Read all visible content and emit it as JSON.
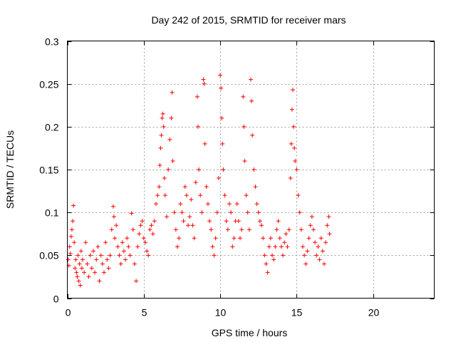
{
  "chart_data": {
    "type": "scatter",
    "title": "Day 242 of 2015, SRMTID for receiver mars",
    "xlabel": "GPS time / hours",
    "ylabel": "SRMTID / TECUs",
    "xlim": [
      0,
      24
    ],
    "ylim": [
      0,
      0.3
    ],
    "xticks": [
      0,
      5,
      10,
      15,
      20
    ],
    "xtick_labels": [
      "0",
      "5",
      "10",
      "15",
      "20"
    ],
    "yticks": [
      0,
      0.05,
      0.1,
      0.15,
      0.2,
      0.25,
      0.3
    ],
    "ytick_labels": [
      "0",
      "0.05",
      "0.1",
      "0.15",
      "0.2",
      "0.25",
      "0.3"
    ],
    "grid": true,
    "marker": "+",
    "color": "#ff0000",
    "series": [
      {
        "name": "SRMTID",
        "points": [
          [
            0.05,
            0.045
          ],
          [
            0.1,
            0.038
          ],
          [
            0.15,
            0.06
          ],
          [
            0.2,
            0.052
          ],
          [
            0.25,
            0.072
          ],
          [
            0.3,
            0.08
          ],
          [
            0.35,
            0.09
          ],
          [
            0.4,
            0.108
          ],
          [
            0.45,
            0.065
          ],
          [
            0.5,
            0.035
          ],
          [
            0.55,
            0.045
          ],
          [
            0.6,
            0.03
          ],
          [
            0.65,
            0.025
          ],
          [
            0.7,
            0.05
          ],
          [
            0.75,
            0.02
          ],
          [
            0.8,
            0.04
          ],
          [
            0.85,
            0.015
          ],
          [
            0.9,
            0.055
          ],
          [
            0.95,
            0.035
          ],
          [
            1.0,
            0.045
          ],
          [
            1.1,
            0.03
          ],
          [
            1.2,
            0.065
          ],
          [
            1.3,
            0.04
          ],
          [
            1.4,
            0.025
          ],
          [
            1.5,
            0.05
          ],
          [
            1.6,
            0.035
          ],
          [
            1.7,
            0.055
          ],
          [
            1.8,
            0.03
          ],
          [
            1.9,
            0.045
          ],
          [
            2.0,
            0.06
          ],
          [
            2.1,
            0.02
          ],
          [
            2.2,
            0.05
          ],
          [
            2.3,
            0.04
          ],
          [
            2.4,
            0.03
          ],
          [
            2.5,
            0.065
          ],
          [
            2.6,
            0.045
          ],
          [
            2.7,
            0.035
          ],
          [
            2.8,
            0.05
          ],
          [
            2.9,
            0.08
          ],
          [
            3.0,
            0.107
          ],
          [
            3.05,
            0.095
          ],
          [
            3.1,
            0.07
          ],
          [
            3.2,
            0.085
          ],
          [
            3.3,
            0.06
          ],
          [
            3.4,
            0.05
          ],
          [
            3.5,
            0.04
          ],
          [
            3.6,
            0.065
          ],
          [
            3.7,
            0.055
          ],
          [
            3.8,
            0.045
          ],
          [
            3.9,
            0.07
          ],
          [
            4.0,
            0.06
          ],
          [
            4.1,
            0.05
          ],
          [
            4.2,
            0.099
          ],
          [
            4.3,
            0.08
          ],
          [
            4.4,
            0.04
          ],
          [
            4.5,
            0.02
          ],
          [
            4.6,
            0.06
          ],
          [
            4.7,
            0.075
          ],
          [
            4.8,
            0.085
          ],
          [
            4.9,
            0.09
          ],
          [
            5.0,
            0.07
          ],
          [
            5.1,
            0.065
          ],
          [
            5.2,
            0.055
          ],
          [
            5.3,
            0.05
          ],
          [
            5.4,
            0.08
          ],
          [
            5.5,
            0.085
          ],
          [
            5.6,
            0.075
          ],
          [
            5.7,
            0.09
          ],
          [
            5.8,
            0.11
          ],
          [
            5.9,
            0.12
          ],
          [
            6.0,
            0.13
          ],
          [
            6.05,
            0.155
          ],
          [
            6.1,
            0.175
          ],
          [
            6.15,
            0.19
          ],
          [
            6.2,
            0.21
          ],
          [
            6.25,
            0.215
          ],
          [
            6.3,
            0.2
          ],
          [
            6.35,
            0.14
          ],
          [
            6.4,
            0.12
          ],
          [
            6.5,
            0.095
          ],
          [
            6.6,
            0.15
          ],
          [
            6.7,
            0.185
          ],
          [
            6.8,
            0.21
          ],
          [
            6.85,
            0.24
          ],
          [
            6.9,
            0.16
          ],
          [
            7.0,
            0.1
          ],
          [
            7.1,
            0.08
          ],
          [
            7.2,
            0.06
          ],
          [
            7.3,
            0.07
          ],
          [
            7.4,
            0.11
          ],
          [
            7.5,
            0.1
          ],
          [
            7.6,
            0.09
          ],
          [
            7.7,
            0.13
          ],
          [
            7.8,
            0.12
          ],
          [
            7.9,
            0.085
          ],
          [
            8.0,
            0.095
          ],
          [
            8.1,
            0.115
          ],
          [
            8.2,
            0.085
          ],
          [
            8.3,
            0.07
          ],
          [
            8.4,
            0.135
          ],
          [
            8.5,
            0.235
          ],
          [
            8.55,
            0.2
          ],
          [
            8.6,
            0.15
          ],
          [
            8.7,
            0.12
          ],
          [
            8.8,
            0.1
          ],
          [
            8.9,
            0.255
          ],
          [
            8.95,
            0.25
          ],
          [
            9.0,
            0.18
          ],
          [
            9.1,
            0.13
          ],
          [
            9.2,
            0.11
          ],
          [
            9.3,
            0.09
          ],
          [
            9.4,
            0.08
          ],
          [
            9.5,
            0.06
          ],
          [
            9.6,
            0.05
          ],
          [
            9.7,
            0.07
          ],
          [
            9.8,
            0.1
          ],
          [
            9.9,
            0.14
          ],
          [
            10.0,
            0.26
          ],
          [
            10.05,
            0.245
          ],
          [
            10.1,
            0.21
          ],
          [
            10.15,
            0.18
          ],
          [
            10.2,
            0.15
          ],
          [
            10.3,
            0.12
          ],
          [
            10.4,
            0.09
          ],
          [
            10.5,
            0.08
          ],
          [
            10.6,
            0.11
          ],
          [
            10.7,
            0.1
          ],
          [
            10.8,
            0.06
          ],
          [
            10.9,
            0.07
          ],
          [
            11.0,
            0.09
          ],
          [
            11.1,
            0.11
          ],
          [
            11.2,
            0.09
          ],
          [
            11.3,
            0.07
          ],
          [
            11.4,
            0.08
          ],
          [
            11.5,
            0.235
          ],
          [
            11.55,
            0.2
          ],
          [
            11.6,
            0.16
          ],
          [
            11.7,
            0.12
          ],
          [
            11.8,
            0.1
          ],
          [
            11.9,
            0.08
          ],
          [
            12.0,
            0.255
          ],
          [
            12.05,
            0.23
          ],
          [
            12.1,
            0.19
          ],
          [
            12.2,
            0.15
          ],
          [
            12.3,
            0.13
          ],
          [
            12.4,
            0.11
          ],
          [
            12.5,
            0.1
          ],
          [
            12.6,
            0.09
          ],
          [
            12.7,
            0.085
          ],
          [
            12.8,
            0.07
          ],
          [
            12.9,
            0.05
          ],
          [
            13.0,
            0.04
          ],
          [
            13.1,
            0.03
          ],
          [
            13.2,
            0.06
          ],
          [
            13.3,
            0.07
          ],
          [
            13.4,
            0.05
          ],
          [
            13.5,
            0.045
          ],
          [
            13.6,
            0.06
          ],
          [
            13.7,
            0.08
          ],
          [
            13.8,
            0.09
          ],
          [
            13.9,
            0.07
          ],
          [
            14.0,
            0.06
          ],
          [
            14.1,
            0.05
          ],
          [
            14.2,
            0.065
          ],
          [
            14.3,
            0.075
          ],
          [
            14.4,
            0.06
          ],
          [
            14.5,
            0.08
          ],
          [
            14.6,
            0.14
          ],
          [
            14.65,
            0.18
          ],
          [
            14.7,
            0.22
          ],
          [
            14.75,
            0.243
          ],
          [
            14.8,
            0.2
          ],
          [
            14.85,
            0.175
          ],
          [
            14.9,
            0.16
          ],
          [
            15.0,
            0.15
          ],
          [
            15.1,
            0.12
          ],
          [
            15.2,
            0.1
          ],
          [
            15.3,
            0.08
          ],
          [
            15.4,
            0.06
          ],
          [
            15.5,
            0.05
          ],
          [
            15.6,
            0.04
          ],
          [
            15.7,
            0.055
          ],
          [
            15.8,
            0.07
          ],
          [
            15.9,
            0.085
          ],
          [
            16.0,
            0.095
          ],
          [
            16.1,
            0.08
          ],
          [
            16.2,
            0.065
          ],
          [
            16.3,
            0.05
          ],
          [
            16.4,
            0.06
          ],
          [
            16.5,
            0.045
          ],
          [
            16.6,
            0.07
          ],
          [
            16.7,
            0.055
          ],
          [
            16.8,
            0.04
          ],
          [
            16.9,
            0.065
          ],
          [
            17.0,
            0.085
          ],
          [
            17.1,
            0.095
          ],
          [
            17.15,
            0.075
          ]
        ]
      }
    ]
  }
}
